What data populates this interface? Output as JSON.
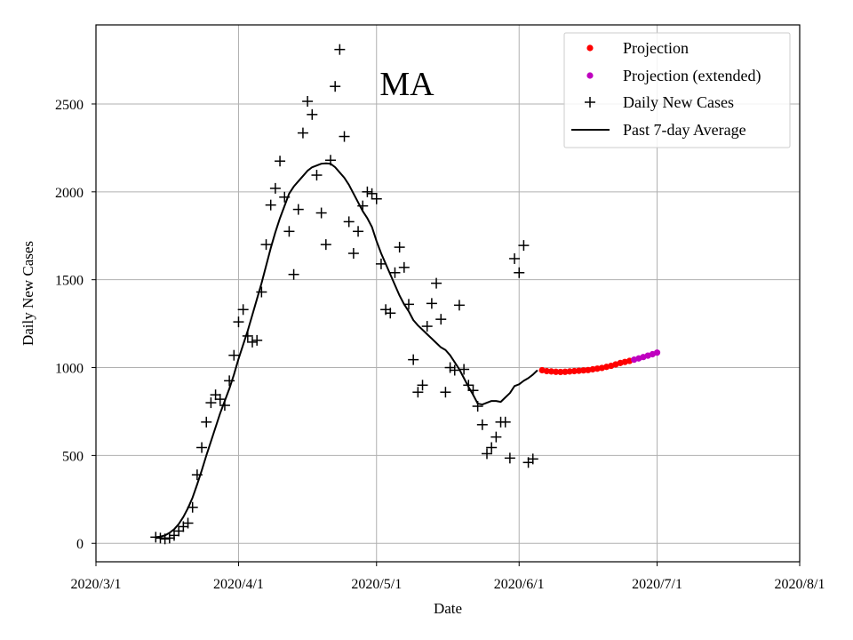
{
  "chart_data": {
    "type": "line",
    "title": "MA",
    "xlabel": "Date",
    "ylabel": "Daily New Cases",
    "grid": true,
    "legend_position": "top-right",
    "x_range_days": [
      0,
      153
    ],
    "ylim": [
      -105,
      2950
    ],
    "x_ticks": [
      {
        "day": 0,
        "label": "2020/3/1"
      },
      {
        "day": 31,
        "label": "2020/4/1"
      },
      {
        "day": 61,
        "label": "2020/5/1"
      },
      {
        "day": 92,
        "label": "2020/6/1"
      },
      {
        "day": 122,
        "label": "2020/7/1"
      },
      {
        "day": 153,
        "label": "2020/8/1"
      }
    ],
    "y_ticks": [
      0,
      500,
      1000,
      1500,
      2000,
      2500
    ],
    "legend": [
      {
        "label": "Projection",
        "marker": "dot",
        "color": "#ff0000"
      },
      {
        "label": "Projection (extended)",
        "marker": "dot",
        "color": "#bf00bf"
      },
      {
        "label": "Daily New Cases",
        "marker": "plus",
        "color": "#000000"
      },
      {
        "label": "Past 7-day Average",
        "marker": "line",
        "color": "#000000"
      }
    ],
    "series": [
      {
        "name": "Daily New Cases",
        "type": "scatter",
        "marker": "plus",
        "color": "#000000",
        "points": [
          [
            13,
            35
          ],
          [
            14,
            30
          ],
          [
            15,
            25
          ],
          [
            16,
            30
          ],
          [
            17,
            45
          ],
          [
            18,
            70
          ],
          [
            19,
            95
          ],
          [
            20,
            115
          ],
          [
            21,
            205
          ],
          [
            22,
            390
          ],
          [
            23,
            545
          ],
          [
            24,
            690
          ],
          [
            25,
            800
          ],
          [
            26,
            845
          ],
          [
            27,
            820
          ],
          [
            28,
            785
          ],
          [
            29,
            925
          ],
          [
            30,
            1070
          ],
          [
            31,
            1260
          ],
          [
            32,
            1330
          ],
          [
            33,
            1180
          ],
          [
            34,
            1145
          ],
          [
            35,
            1155
          ],
          [
            36,
            1430
          ],
          [
            37,
            1700
          ],
          [
            38,
            1925
          ],
          [
            39,
            2020
          ],
          [
            40,
            2175
          ],
          [
            41,
            1970
          ],
          [
            42,
            1775
          ],
          [
            43,
            1530
          ],
          [
            44,
            1900
          ],
          [
            45,
            2335
          ],
          [
            46,
            2515
          ],
          [
            47,
            2440
          ],
          [
            48,
            2095
          ],
          [
            49,
            1880
          ],
          [
            50,
            1700
          ],
          [
            51,
            2180
          ],
          [
            52,
            2600
          ],
          [
            53,
            2810
          ],
          [
            54,
            2315
          ],
          [
            55,
            1830
          ],
          [
            56,
            1650
          ],
          [
            57,
            1775
          ],
          [
            58,
            1920
          ],
          [
            59,
            2000
          ],
          [
            60,
            1990
          ],
          [
            61,
            1960
          ],
          [
            62,
            1590
          ],
          [
            63,
            1330
          ],
          [
            64,
            1310
          ],
          [
            65,
            1540
          ],
          [
            66,
            1685
          ],
          [
            67,
            1570
          ],
          [
            68,
            1360
          ],
          [
            69,
            1045
          ],
          [
            70,
            860
          ],
          [
            71,
            900
          ],
          [
            72,
            1235
          ],
          [
            73,
            1365
          ],
          [
            74,
            1480
          ],
          [
            75,
            1275
          ],
          [
            76,
            860
          ],
          [
            77,
            1000
          ],
          [
            78,
            985
          ],
          [
            79,
            1355
          ],
          [
            80,
            990
          ],
          [
            81,
            900
          ],
          [
            82,
            870
          ],
          [
            83,
            780
          ],
          [
            84,
            675
          ],
          [
            85,
            510
          ],
          [
            86,
            545
          ],
          [
            87,
            605
          ],
          [
            88,
            690
          ],
          [
            89,
            690
          ],
          [
            90,
            485
          ],
          [
            91,
            1620
          ],
          [
            92,
            1540
          ],
          [
            93,
            1695
          ],
          [
            94,
            460
          ],
          [
            95,
            480
          ]
        ]
      },
      {
        "name": "Past 7-day Average",
        "type": "line",
        "color": "#000000",
        "points": [
          [
            13,
            35
          ],
          [
            14,
            38
          ],
          [
            15,
            45
          ],
          [
            16,
            60
          ],
          [
            17,
            80
          ],
          [
            18,
            110
          ],
          [
            19,
            150
          ],
          [
            20,
            200
          ],
          [
            21,
            260
          ],
          [
            22,
            335
          ],
          [
            23,
            415
          ],
          [
            24,
            500
          ],
          [
            25,
            580
          ],
          [
            26,
            660
          ],
          [
            27,
            740
          ],
          [
            28,
            810
          ],
          [
            29,
            880
          ],
          [
            30,
            960
          ],
          [
            31,
            1050
          ],
          [
            32,
            1130
          ],
          [
            33,
            1210
          ],
          [
            34,
            1300
          ],
          [
            35,
            1390
          ],
          [
            36,
            1480
          ],
          [
            37,
            1580
          ],
          [
            38,
            1680
          ],
          [
            39,
            1770
          ],
          [
            40,
            1850
          ],
          [
            41,
            1920
          ],
          [
            42,
            1990
          ],
          [
            43,
            2030
          ],
          [
            44,
            2060
          ],
          [
            45,
            2090
          ],
          [
            46,
            2120
          ],
          [
            47,
            2140
          ],
          [
            48,
            2150
          ],
          [
            49,
            2160
          ],
          [
            50,
            2162
          ],
          [
            51,
            2160
          ],
          [
            52,
            2140
          ],
          [
            53,
            2110
          ],
          [
            54,
            2080
          ],
          [
            55,
            2040
          ],
          [
            56,
            1990
          ],
          [
            57,
            1940
          ],
          [
            58,
            1890
          ],
          [
            59,
            1850
          ],
          [
            60,
            1800
          ],
          [
            61,
            1720
          ],
          [
            62,
            1650
          ],
          [
            63,
            1590
          ],
          [
            64,
            1530
          ],
          [
            65,
            1470
          ],
          [
            66,
            1410
          ],
          [
            67,
            1360
          ],
          [
            68,
            1320
          ],
          [
            69,
            1270
          ],
          [
            70,
            1240
          ],
          [
            71,
            1215
          ],
          [
            72,
            1190
          ],
          [
            73,
            1165
          ],
          [
            74,
            1140
          ],
          [
            75,
            1115
          ],
          [
            76,
            1100
          ],
          [
            77,
            1070
          ],
          [
            78,
            1030
          ],
          [
            79,
            990
          ],
          [
            80,
            940
          ],
          [
            81,
            890
          ],
          [
            82,
            845
          ],
          [
            83,
            795
          ],
          [
            84,
            790
          ],
          [
            85,
            800
          ],
          [
            86,
            810
          ],
          [
            87,
            810
          ],
          [
            88,
            805
          ],
          [
            89,
            830
          ],
          [
            90,
            855
          ],
          [
            91,
            895
          ],
          [
            92,
            905
          ],
          [
            93,
            925
          ],
          [
            94,
            940
          ],
          [
            95,
            960
          ],
          [
            96,
            985
          ]
        ]
      },
      {
        "name": "Projection",
        "type": "scatter",
        "marker": "dot",
        "color": "#ff0000",
        "points": [
          [
            97,
            985
          ],
          [
            98,
            980
          ],
          [
            99,
            978
          ],
          [
            100,
            976
          ],
          [
            101,
            975
          ],
          [
            102,
            976
          ],
          [
            103,
            978
          ],
          [
            104,
            980
          ],
          [
            105,
            982
          ],
          [
            106,
            984
          ],
          [
            107,
            986
          ],
          [
            108,
            990
          ],
          [
            109,
            994
          ],
          [
            110,
            998
          ],
          [
            111,
            1004
          ],
          [
            112,
            1010
          ],
          [
            113,
            1018
          ],
          [
            114,
            1026
          ],
          [
            115,
            1032
          ],
          [
            116,
            1038
          ]
        ]
      },
      {
        "name": "Projection (extended)",
        "type": "scatter",
        "marker": "dot",
        "color": "#bf00bf",
        "points": [
          [
            117,
            1045
          ],
          [
            118,
            1052
          ],
          [
            119,
            1060
          ],
          [
            120,
            1068
          ],
          [
            121,
            1076
          ],
          [
            122,
            1085
          ]
        ]
      }
    ]
  }
}
